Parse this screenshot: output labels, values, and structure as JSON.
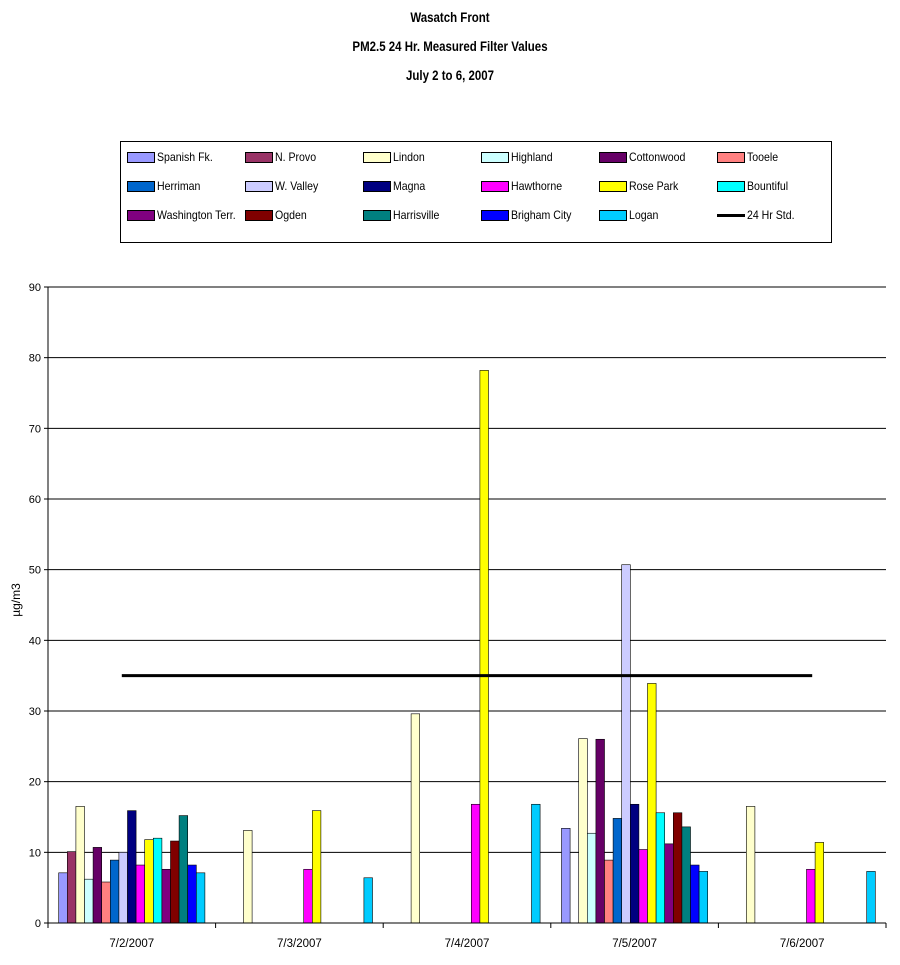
{
  "chart_data": {
    "type": "bar",
    "title": "Wasatch Front",
    "subtitle": "PM2.5 24 Hr. Measured Filter Values",
    "subtitle2": "July 2 to 6, 2007",
    "ylabel": "µg/m3",
    "xlabel": "",
    "ylim": [
      0,
      90
    ],
    "yticks": [
      "0",
      "10",
      "20",
      "30",
      "40",
      "50",
      "60",
      "70",
      "80",
      "90"
    ],
    "grid": true,
    "legend_position": "top",
    "categories": [
      "7/2/2007",
      "7/3/2007",
      "7/4/2007",
      "7/5/2007",
      "7/6/2007"
    ],
    "series": [
      {
        "name": "Spanish Fk.",
        "color": "#9999ff",
        "values": [
          7.1,
          null,
          null,
          13.4,
          null
        ]
      },
      {
        "name": "N. Provo",
        "color": "#993366",
        "values": [
          10.1,
          null,
          null,
          null,
          null
        ]
      },
      {
        "name": "Lindon",
        "color": "#ffffcc",
        "values": [
          16.5,
          13.1,
          29.6,
          26.1,
          16.5
        ]
      },
      {
        "name": "Highland",
        "color": "#ccffff",
        "values": [
          6.2,
          null,
          null,
          12.7,
          null
        ]
      },
      {
        "name": "Cottonwood",
        "color": "#660066",
        "values": [
          10.7,
          null,
          null,
          26.0,
          null
        ]
      },
      {
        "name": "Tooele",
        "color": "#ff8080",
        "values": [
          5.8,
          null,
          null,
          8.9,
          null
        ]
      },
      {
        "name": "Herriman",
        "color": "#0066cc",
        "values": [
          8.9,
          null,
          null,
          14.8,
          null
        ]
      },
      {
        "name": "W. Valley",
        "color": "#ccccff",
        "values": [
          10.0,
          null,
          null,
          50.7,
          null
        ]
      },
      {
        "name": "Magna",
        "color": "#000080",
        "values": [
          15.9,
          null,
          null,
          16.8,
          null
        ]
      },
      {
        "name": "Hawthorne",
        "color": "#ff00ff",
        "values": [
          8.2,
          7.6,
          16.8,
          10.4,
          7.6
        ]
      },
      {
        "name": "Rose Park",
        "color": "#ffff00",
        "values": [
          11.8,
          15.9,
          78.2,
          33.9,
          11.4
        ]
      },
      {
        "name": "Bountiful",
        "color": "#00ffff",
        "values": [
          12.0,
          null,
          null,
          15.6,
          null
        ]
      },
      {
        "name": "Washington Terr.",
        "color": "#800080",
        "values": [
          7.6,
          null,
          null,
          11.2,
          null
        ]
      },
      {
        "name": "Ogden",
        "color": "#800000",
        "values": [
          11.6,
          null,
          null,
          15.6,
          null
        ]
      },
      {
        "name": "Harrisville",
        "color": "#008080",
        "values": [
          15.2,
          null,
          null,
          13.6,
          null
        ]
      },
      {
        "name": "Brigham City",
        "color": "#0000ff",
        "values": [
          8.2,
          null,
          null,
          8.2,
          null
        ]
      },
      {
        "name": "Logan",
        "color": "#00ccff",
        "values": [
          7.1,
          6.4,
          16.8,
          7.3,
          7.3
        ]
      }
    ],
    "reference_line": {
      "name": "24 Hr Std.",
      "value": 35,
      "color": "#000000"
    }
  }
}
